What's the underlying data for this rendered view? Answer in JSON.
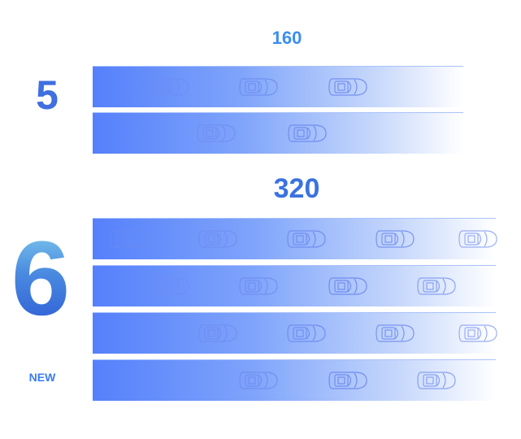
{
  "top_group": {
    "capacity": "160",
    "lanes_label": "5",
    "lane_count": 2
  },
  "bottom_group": {
    "capacity": "320",
    "lanes_label": "6",
    "badge": "NEW",
    "lane_count": 4
  },
  "colors": {
    "lane_start": "#5580fb",
    "lane_end": "#ffffff",
    "accent": "#3a72e0"
  },
  "icon": "car-icon"
}
